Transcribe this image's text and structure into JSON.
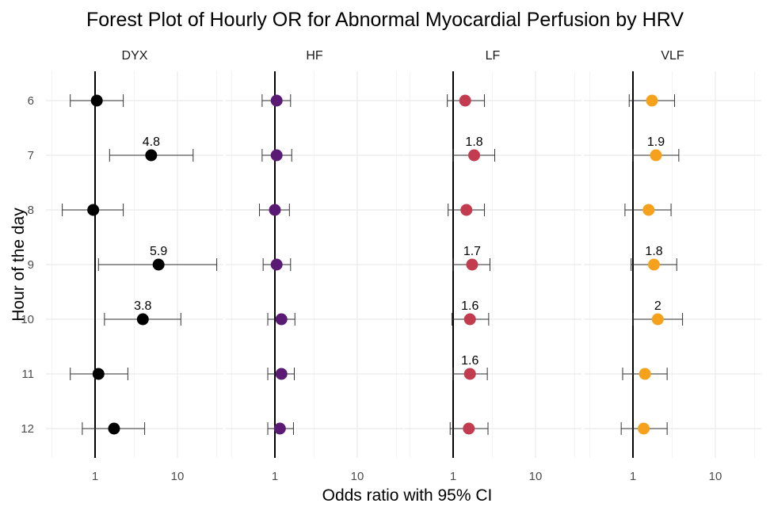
{
  "chart_data": {
    "type": "scatter",
    "title": "Forest Plot of Hourly OR for Abnormal Myocardial Perfusion by HRV",
    "xlabel": "Odds ratio with 95% CI",
    "ylabel": "Hour of the day",
    "x_scale": "log",
    "x_ticks": [
      "1",
      "10"
    ],
    "reference_line": 1,
    "categories": [
      "6",
      "7",
      "8",
      "9",
      "10",
      "11",
      "12"
    ],
    "grid": true,
    "panels": [
      {
        "name": "DYX",
        "color": "#000000",
        "points": [
          {
            "hour": "6",
            "or": 1.05,
            "lo": 0.5,
            "hi": 2.2,
            "label": ""
          },
          {
            "hour": "7",
            "or": 4.8,
            "lo": 1.5,
            "hi": 15.5,
            "label": "4.8"
          },
          {
            "hour": "8",
            "or": 0.95,
            "lo": 0.4,
            "hi": 2.2,
            "label": ""
          },
          {
            "hour": "9",
            "or": 5.9,
            "lo": 1.1,
            "hi": 30.0,
            "label": "5.9"
          },
          {
            "hour": "10",
            "or": 3.8,
            "lo": 1.3,
            "hi": 11.0,
            "label": "3.8"
          },
          {
            "hour": "11",
            "or": 1.1,
            "lo": 0.5,
            "hi": 2.5,
            "label": ""
          },
          {
            "hour": "12",
            "or": 1.7,
            "lo": 0.7,
            "hi": 4.0,
            "label": ""
          }
        ]
      },
      {
        "name": "HF",
        "color": "#5a1a74",
        "points": [
          {
            "hour": "6",
            "or": 1.05,
            "lo": 0.7,
            "hi": 1.55,
            "label": ""
          },
          {
            "hour": "7",
            "or": 1.05,
            "lo": 0.7,
            "hi": 1.6,
            "label": ""
          },
          {
            "hour": "8",
            "or": 1.0,
            "lo": 0.65,
            "hi": 1.5,
            "label": ""
          },
          {
            "hour": "9",
            "or": 1.05,
            "lo": 0.72,
            "hi": 1.55,
            "label": ""
          },
          {
            "hour": "10",
            "or": 1.2,
            "lo": 0.82,
            "hi": 1.75,
            "label": ""
          },
          {
            "hour": "11",
            "or": 1.2,
            "lo": 0.82,
            "hi": 1.72,
            "label": ""
          },
          {
            "hour": "12",
            "or": 1.15,
            "lo": 0.82,
            "hi": 1.68,
            "label": ""
          }
        ]
      },
      {
        "name": "LF",
        "color": "#c23b4f",
        "points": [
          {
            "hour": "6",
            "or": 1.4,
            "lo": 0.85,
            "hi": 2.4,
            "label": ""
          },
          {
            "hour": "7",
            "or": 1.8,
            "lo": 1.0,
            "hi": 3.2,
            "label": "1.8"
          },
          {
            "hour": "8",
            "or": 1.45,
            "lo": 0.87,
            "hi": 2.4,
            "label": ""
          },
          {
            "hour": "9",
            "or": 1.7,
            "lo": 1.0,
            "hi": 2.8,
            "label": "1.7"
          },
          {
            "hour": "10",
            "or": 1.6,
            "lo": 0.97,
            "hi": 2.7,
            "label": "1.6"
          },
          {
            "hour": "11",
            "or": 1.6,
            "lo": 1.0,
            "hi": 2.6,
            "label": "1.6"
          },
          {
            "hour": "12",
            "or": 1.55,
            "lo": 0.92,
            "hi": 2.65,
            "label": ""
          }
        ]
      },
      {
        "name": "VLF",
        "color": "#f5a11c",
        "points": [
          {
            "hour": "6",
            "or": 1.7,
            "lo": 0.9,
            "hi": 3.2,
            "label": ""
          },
          {
            "hour": "7",
            "or": 1.9,
            "lo": 1.0,
            "hi": 3.6,
            "label": "1.9"
          },
          {
            "hour": "8",
            "or": 1.55,
            "lo": 0.8,
            "hi": 2.9,
            "label": ""
          },
          {
            "hour": "9",
            "or": 1.8,
            "lo": 0.95,
            "hi": 3.4,
            "label": "1.8"
          },
          {
            "hour": "10",
            "or": 2.0,
            "lo": 1.0,
            "hi": 4.0,
            "label": "2"
          },
          {
            "hour": "11",
            "or": 1.4,
            "lo": 0.75,
            "hi": 2.6,
            "label": ""
          },
          {
            "hour": "12",
            "or": 1.35,
            "lo": 0.72,
            "hi": 2.6,
            "label": ""
          }
        ]
      }
    ]
  }
}
